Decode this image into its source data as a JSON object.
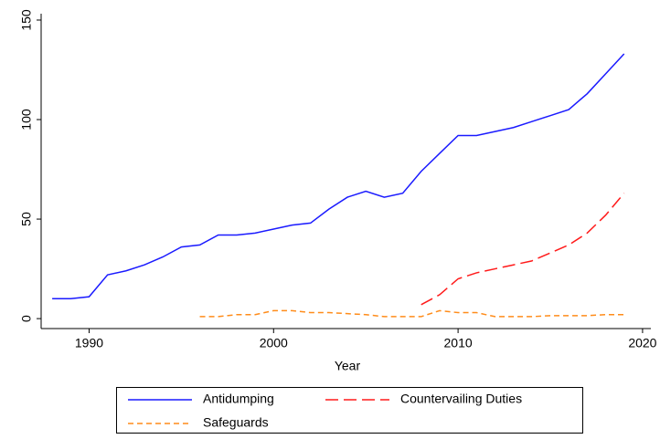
{
  "chart_data": {
    "type": "line",
    "x_label": "Year",
    "x": [
      1988,
      1989,
      1990,
      1991,
      1992,
      1993,
      1994,
      1995,
      1996,
      1997,
      1998,
      1999,
      2000,
      2001,
      2002,
      2003,
      2004,
      2005,
      2006,
      2007,
      2008,
      2009,
      2010,
      2011,
      2012,
      2013,
      2014,
      2015,
      2016,
      2017,
      2018,
      2019
    ],
    "series": [
      {
        "name": "Antidumping",
        "color": "#1a1aff",
        "dash": "none",
        "values": [
          10,
          10,
          11,
          22,
          24,
          27,
          31,
          36,
          37,
          42,
          42,
          43,
          45,
          47,
          48,
          55,
          61,
          64,
          61,
          63,
          74,
          83,
          92,
          92,
          94,
          96,
          99,
          102,
          105,
          113,
          123,
          133
        ]
      },
      {
        "name": "Countervailing Duties",
        "color": "#ff1a1a",
        "dash": "14,6",
        "values": [
          null,
          null,
          null,
          null,
          null,
          null,
          null,
          null,
          null,
          null,
          null,
          null,
          null,
          null,
          null,
          null,
          null,
          null,
          null,
          null,
          7,
          12,
          20,
          23,
          25,
          27,
          29,
          33,
          37,
          43,
          52,
          63
        ]
      },
      {
        "name": "Safeguards",
        "color": "#ff8c1a",
        "dash": "6,4",
        "values": [
          null,
          null,
          null,
          null,
          null,
          null,
          null,
          null,
          1,
          1,
          2,
          2,
          4,
          4,
          3,
          3,
          2.5,
          2,
          1,
          1,
          1,
          4,
          3,
          3,
          1,
          1,
          1,
          1.5,
          1.5,
          1.5,
          2,
          2
        ]
      }
    ],
    "xlim": [
      1987.4,
      2020.45
    ],
    "xticks": [
      1990,
      2000,
      2010,
      2020
    ],
    "ylim": [
      -5,
      153.2
    ],
    "yticks": [
      0,
      50,
      100,
      150
    ],
    "grid": false,
    "legend": "bottom"
  }
}
